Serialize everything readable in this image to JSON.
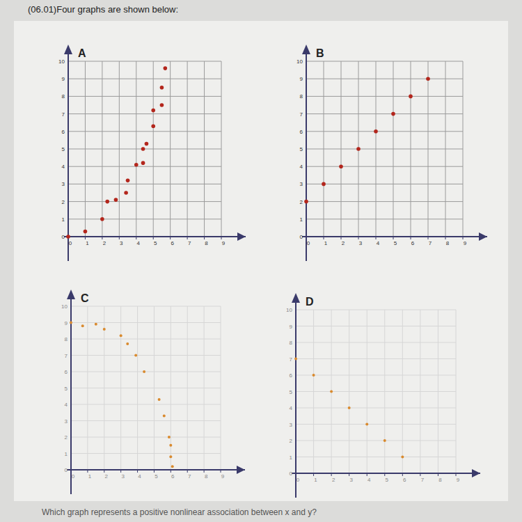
{
  "heading": "(06.01)Four graphs are shown below:",
  "prompt": "Which graph represents a positive nonlinear association between x and y?",
  "chart_data": [
    {
      "type": "scatter",
      "title": "A",
      "color": "#b3261c",
      "grid": true,
      "x": [
        0,
        1,
        2,
        2.3,
        2.8,
        3.4,
        3.5,
        4,
        4.4,
        4.4,
        4.6,
        5,
        5,
        5.5,
        5.5,
        5.7
      ],
      "values": [
        0,
        0.3,
        1,
        2,
        2.1,
        2.5,
        3.2,
        4.1,
        4.2,
        5,
        5.3,
        6.3,
        7.2,
        7.5,
        8.5,
        9.6
      ],
      "xlim": [
        0,
        9
      ],
      "ylim": [
        0,
        10
      ],
      "xticks": [
        0,
        1,
        2,
        3,
        4,
        5,
        6,
        7,
        8,
        9
      ],
      "yticks": [
        0,
        1,
        2,
        3,
        4,
        5,
        6,
        7,
        8,
        9,
        10
      ]
    },
    {
      "type": "scatter",
      "title": "B",
      "color": "#b3261c",
      "grid": true,
      "x": [
        0,
        1,
        2,
        3,
        4,
        5,
        6,
        7
      ],
      "values": [
        2,
        3,
        4,
        5,
        6,
        7,
        8,
        9
      ],
      "xlim": [
        0,
        9
      ],
      "ylim": [
        0,
        10
      ],
      "xticks": [
        0,
        1,
        2,
        3,
        4,
        5,
        6,
        7,
        8,
        9
      ],
      "yticks": [
        0,
        1,
        2,
        3,
        4,
        5,
        6,
        7,
        8,
        9,
        10
      ]
    },
    {
      "type": "scatter",
      "title": "C",
      "color": "#d98a2e",
      "grid": true,
      "x": [
        0,
        0.7,
        1.5,
        2,
        3,
        3.4,
        3.9,
        4.4,
        5.3,
        5.6,
        5.9,
        6,
        6,
        6.1
      ],
      "values": [
        9,
        8.8,
        8.9,
        8.6,
        8.2,
        7.7,
        7,
        6,
        4.3,
        3.3,
        2,
        1.5,
        0.8,
        0.2
      ],
      "xlim": [
        0,
        9
      ],
      "ylim": [
        0,
        10
      ],
      "xticks": [
        0,
        1,
        2,
        3,
        4,
        5,
        6,
        7,
        8,
        9
      ],
      "yticks": [
        0,
        1,
        2,
        3,
        4,
        5,
        6,
        7,
        8,
        9,
        10
      ]
    },
    {
      "type": "scatter",
      "title": "D",
      "color": "#d98a2e",
      "grid": true,
      "x": [
        0,
        1,
        2,
        3,
        4,
        5,
        6
      ],
      "values": [
        7,
        6,
        5,
        4,
        3,
        2,
        1
      ],
      "xlim": [
        0,
        9
      ],
      "ylim": [
        0,
        10
      ],
      "xticks": [
        0,
        1,
        2,
        3,
        4,
        5,
        6,
        7,
        8,
        9
      ],
      "yticks": [
        0,
        1,
        2,
        3,
        4,
        5,
        6,
        7,
        8,
        9,
        10
      ]
    }
  ]
}
